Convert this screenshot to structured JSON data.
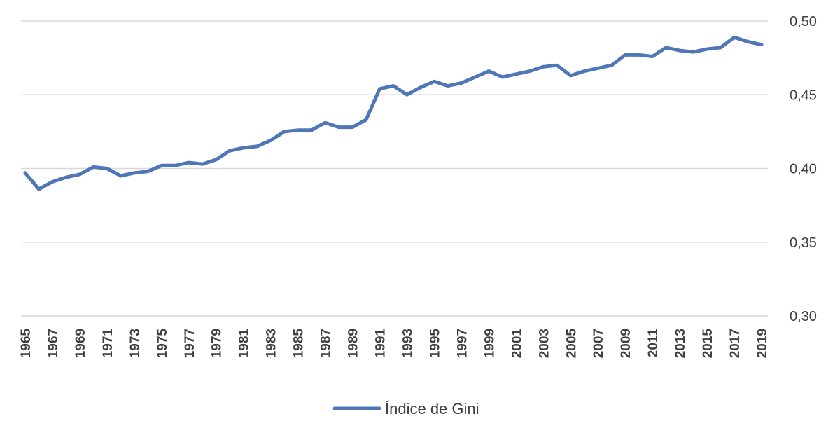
{
  "chart_data": {
    "type": "line",
    "x": [
      1965,
      1966,
      1967,
      1968,
      1969,
      1970,
      1971,
      1972,
      1973,
      1974,
      1975,
      1976,
      1977,
      1978,
      1979,
      1980,
      1981,
      1982,
      1983,
      1984,
      1985,
      1986,
      1987,
      1988,
      1989,
      1990,
      1991,
      1992,
      1993,
      1994,
      1995,
      1996,
      1997,
      1998,
      1999,
      2000,
      2001,
      2002,
      2003,
      2004,
      2005,
      2006,
      2007,
      2008,
      2009,
      2010,
      2011,
      2012,
      2013,
      2014,
      2015,
      2016,
      2017,
      2018,
      2019
    ],
    "x_tick_labels": [
      "1965",
      "1967",
      "1969",
      "1971",
      "1973",
      "1975",
      "1977",
      "1979",
      "1981",
      "1983",
      "1985",
      "1987",
      "1989",
      "1991",
      "1993",
      "1995",
      "1997",
      "1999",
      "2001",
      "2003",
      "2005",
      "2007",
      "2009",
      "2011",
      "2013",
      "2015",
      "2017",
      "2019"
    ],
    "series": [
      {
        "name": "Índice de Gini",
        "color": "#4f76b6",
        "values": [
          0.397,
          0.386,
          0.391,
          0.394,
          0.396,
          0.401,
          0.4,
          0.395,
          0.397,
          0.398,
          0.402,
          0.402,
          0.404,
          0.403,
          0.406,
          0.412,
          0.414,
          0.415,
          0.419,
          0.425,
          0.426,
          0.426,
          0.431,
          0.428,
          0.428,
          0.433,
          0.454,
          0.456,
          0.45,
          0.455,
          0.459,
          0.456,
          0.458,
          0.462,
          0.466,
          0.462,
          0.464,
          0.466,
          0.469,
          0.47,
          0.463,
          0.466,
          0.468,
          0.47,
          0.477,
          0.477,
          0.476,
          0.482,
          0.48,
          0.479,
          0.481,
          0.482,
          0.489,
          0.486,
          0.484
        ]
      }
    ],
    "y_tick_labels": [
      "0,30",
      "0,35",
      "0,40",
      "0,45",
      "0,50"
    ],
    "ylim": [
      0.3,
      0.5
    ],
    "y_ticks": [
      0.3,
      0.35,
      0.4,
      0.45,
      0.5
    ],
    "y_axis_position": "right",
    "grid": true,
    "legend_position": "bottom-center",
    "title": "",
    "xlabel": "",
    "ylabel": ""
  }
}
